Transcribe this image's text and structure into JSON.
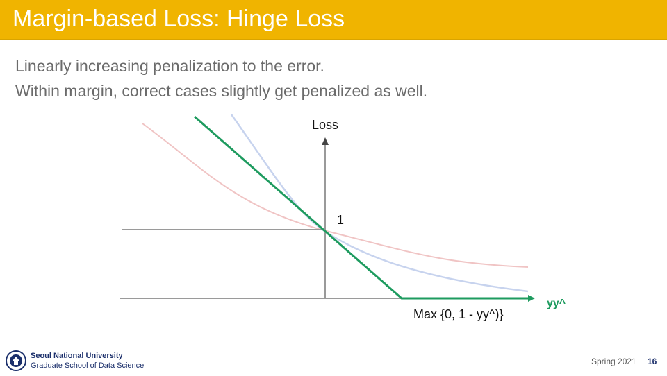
{
  "slide": {
    "title": "Margin-based Loss: Hinge Loss",
    "bullets": [
      "Linearly increasing penalization to the error.",
      "Within margin, correct cases slightly get penalized as well."
    ]
  },
  "diagram": {
    "y_axis_label": "Loss",
    "tick_label_one": "1",
    "x_axis_label": "yy^",
    "formula": "Max {0, 1 - yy^)}",
    "colors": {
      "hinge": "#1e9b5f",
      "faded_red_curve": "#f0c4c4",
      "faded_blue_curve": "#c7d3ee",
      "axis": "#9a9a9a",
      "title_bar": "#f0b400"
    }
  },
  "footer": {
    "university": "Seoul National University",
    "school": "Graduate School of Data Science",
    "term": "Spring 2021",
    "page": "16"
  }
}
